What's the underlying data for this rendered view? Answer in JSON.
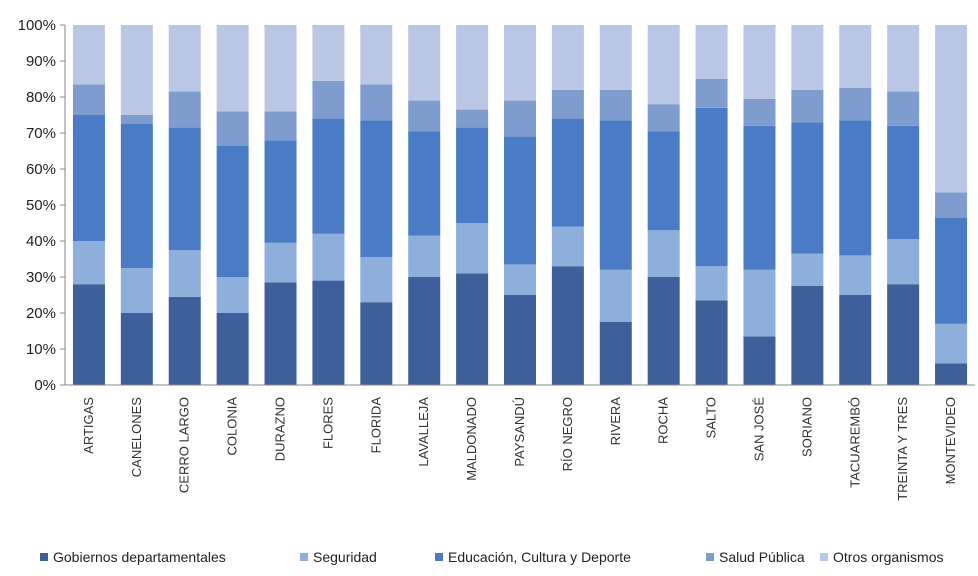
{
  "chart_data": {
    "type": "bar",
    "stacked": true,
    "percent": true,
    "ylim": [
      0,
      100
    ],
    "yticks": [
      "0%",
      "10%",
      "20%",
      "30%",
      "40%",
      "50%",
      "60%",
      "70%",
      "80%",
      "90%",
      "100%"
    ],
    "grid": false,
    "legend_position": "bottom",
    "categories": [
      "ARTIGAS",
      "CANELONES",
      "CERRO LARGO",
      "COLONIA",
      "DURAZNO",
      "FLORES",
      "FLORIDA",
      "LAVALLEJA",
      "MALDONADO",
      "PAYSANDÚ",
      "RÍO NEGRO",
      "RIVERA",
      "ROCHA",
      "SALTO",
      "SAN JOSÉ",
      "SORIANO",
      "TACUAREMBÓ",
      "TREINTA Y TRES",
      "MONTEVIDEO"
    ],
    "series": [
      {
        "name": "Gobiernos departamentales",
        "color": "#3d5f9a",
        "values": [
          28,
          20,
          24.5,
          20,
          28.5,
          29,
          23,
          30,
          31,
          25,
          33,
          17.5,
          30,
          23.5,
          13.5,
          27.5,
          25,
          28,
          6
        ]
      },
      {
        "name": "Seguridad",
        "color": "#8eaedc",
        "values": [
          12,
          12.5,
          13,
          10,
          11,
          13,
          12.5,
          11.5,
          14,
          8.5,
          11,
          14.5,
          13,
          9.5,
          18.5,
          9,
          11,
          12.5,
          11
        ]
      },
      {
        "name": "Educación, Cultura y Deporte",
        "color": "#4a7cc5",
        "values": [
          35,
          40,
          34,
          36.5,
          28.5,
          32,
          38,
          29,
          26.5,
          35.5,
          30,
          41.5,
          27.5,
          44,
          40,
          36.5,
          37.5,
          31.5,
          29.5
        ]
      },
      {
        "name": "Salud Pública",
        "color": "#7e9ccd",
        "values": [
          8.5,
          2.5,
          10,
          9.5,
          8,
          10.5,
          10,
          8.5,
          5,
          10,
          8,
          8.5,
          7.5,
          8,
          7.5,
          9,
          9,
          9.5,
          7
        ]
      },
      {
        "name": "Otros organismos",
        "color": "#b9c7e4",
        "values": [
          16.5,
          25,
          18.5,
          24,
          24,
          15.5,
          16.5,
          21,
          23.5,
          21,
          18,
          18,
          22,
          15,
          20.5,
          18,
          17.5,
          18.5,
          46.5
        ]
      }
    ]
  }
}
